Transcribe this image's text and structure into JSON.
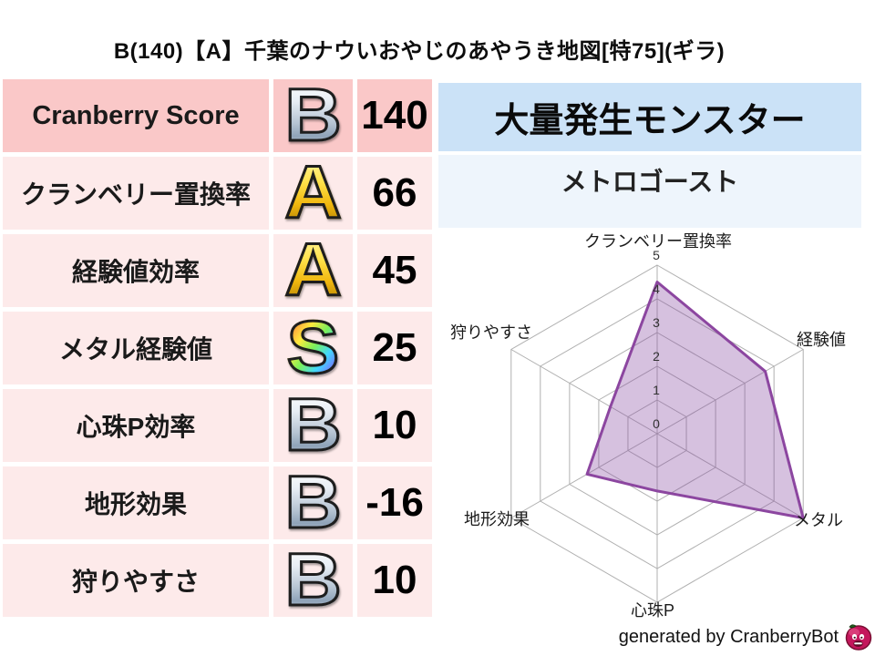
{
  "title": "B(140)【A】千葉のナウいおやじのあやうき地図[特75](ギラ)",
  "stats_table": {
    "rows": [
      {
        "label": "Cranberry Score",
        "grade": "B",
        "value": "140",
        "highlight": true
      },
      {
        "label": "クランベリー置換率",
        "grade": "A",
        "value": "66",
        "highlight": false
      },
      {
        "label": "経験値効率",
        "grade": "A",
        "value": "45",
        "highlight": false
      },
      {
        "label": "メタル経験値",
        "grade": "S",
        "value": "25",
        "highlight": false
      },
      {
        "label": "心珠P効率",
        "grade": "B",
        "value": "10",
        "highlight": false
      },
      {
        "label": "地形効果",
        "grade": "B",
        "value": "-16",
        "highlight": false
      },
      {
        "label": "狩りやすさ",
        "grade": "B",
        "value": "10",
        "highlight": false
      }
    ]
  },
  "monster_panel": {
    "header": "大量発生モンスター",
    "name": "メトロゴースト"
  },
  "chart_data": {
    "type": "radar",
    "categories": [
      "クランベリー置換率",
      "経験値",
      "メタル",
      "心珠P",
      "地形効果",
      "狩りやすさ"
    ],
    "values": [
      4.5,
      3.7,
      5.0,
      1.7,
      2.4,
      1.6
    ],
    "ticks": [
      "0",
      "1",
      "2",
      "3",
      "4",
      "5"
    ],
    "rlim": [
      0,
      5
    ],
    "grid": "on",
    "legend": "none",
    "fill_color": "rgba(138,78,163,0.35)",
    "stroke_color": "#8c46a0",
    "grid_color": "#b0b0b0"
  },
  "footer": {
    "credit": "generated by CranberryBot",
    "icon": "cranberrybot-icon"
  },
  "colors": {
    "row_highlight_bg": "#fac8c8",
    "row_bg": "#fdeaea",
    "monster_header_bg": "#cbe2f7",
    "monster_name_bg": "#eef5fc",
    "grade_silver": "#b6c4d3",
    "grade_gold": "#ffe24a",
    "icon_body": "#c4175c"
  }
}
